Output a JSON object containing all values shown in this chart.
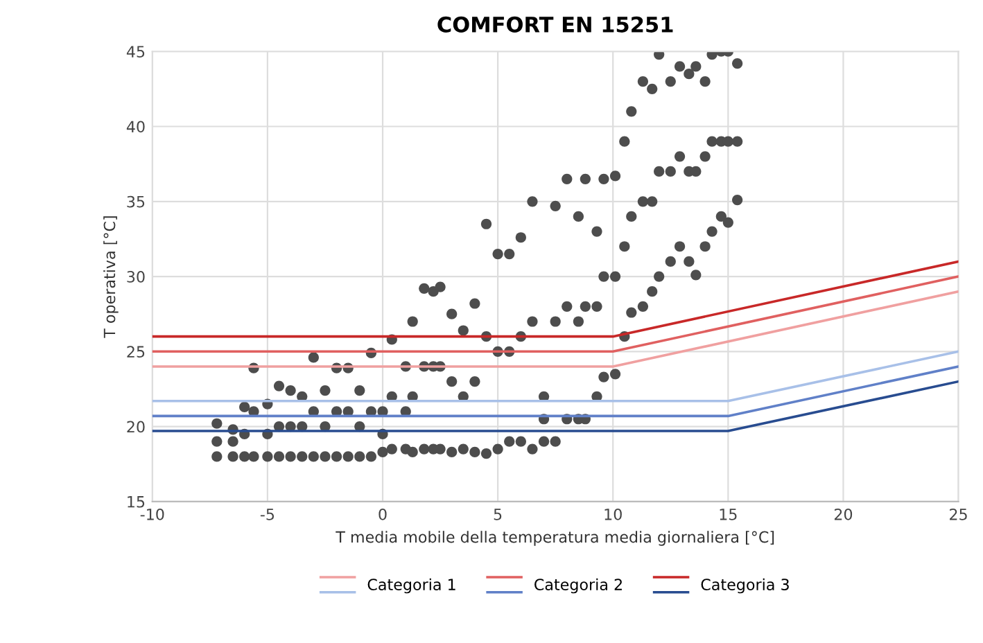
{
  "chart_data": {
    "type": "scatter",
    "title": "COMFORT EN 15251",
    "xlabel": "T media mobile della temperatura media giornaliera [°C]",
    "ylabel": "T operativa [°C]",
    "xlim": [
      -10,
      25
    ],
    "xticks": [
      -10,
      -5,
      0,
      5,
      10,
      15,
      20,
      25
    ],
    "ylim": [
      15,
      45
    ],
    "yticks": [
      15,
      20,
      25,
      30,
      35,
      40,
      45
    ],
    "grid": true,
    "legend": "bottom",
    "series": [
      {
        "marker": "circle",
        "color": "#4d4d4d",
        "x": [
          -7.2,
          -7.2,
          -7.2,
          -6.5,
          -6.5,
          -6.5,
          -6,
          -6,
          -6,
          -5.6,
          -5.6,
          -5.6,
          -5,
          -5,
          -5,
          -4.5,
          -4.5,
          -4.5,
          -4,
          -4,
          -4,
          -3.5,
          -3.5,
          -3.5,
          -3,
          -3,
          -3,
          -2.5,
          -2.5,
          -2.5,
          -2,
          -2,
          -2,
          -1.5,
          -1.5,
          -1.5,
          -1,
          -1,
          -1,
          -0.5,
          -0.5,
          -0.5,
          0,
          0,
          0,
          0.4,
          0.4,
          0.4,
          1,
          1,
          1,
          1.3,
          1.3,
          1.3,
          1.8,
          1.8,
          1.8,
          2.2,
          2.2,
          2.2,
          2.5,
          2.5,
          2.5,
          3,
          3,
          3,
          3.5,
          3.5,
          3.5,
          4,
          4,
          4,
          4.5,
          4.5,
          4.5,
          5,
          5,
          5,
          5.5,
          5.5,
          5.5,
          6,
          6,
          6,
          6.5,
          6.5,
          6.5,
          7,
          7,
          7,
          7.5,
          7.5,
          7.5,
          8,
          8,
          8,
          8.5,
          8.5,
          8.5,
          8.8,
          8.8,
          8.8,
          9.3,
          9.3,
          9.3,
          9.6,
          9.6,
          9.6,
          10.1,
          10.1,
          10.1,
          10.5,
          10.5,
          10.5,
          10.8,
          10.8,
          10.8,
          11.3,
          11.3,
          11.3,
          11.7,
          11.7,
          11.7,
          12,
          12,
          12,
          12.5,
          12.5,
          12.5,
          12.9,
          12.9,
          12.9,
          13.3,
          13.3,
          13.3,
          13.6,
          13.6,
          13.6,
          14,
          14,
          14,
          14.3,
          14.3,
          14.3,
          14.7,
          14.7,
          14.7,
          15,
          15,
          15,
          15.4,
          15.4,
          15.4
        ],
        "values": [
          18,
          19,
          20.2,
          18,
          19,
          19.8,
          18,
          19.5,
          21.3,
          18,
          21,
          23.9,
          18,
          19.5,
          21.5,
          18,
          20,
          22.7,
          18,
          20,
          22.4,
          18,
          20,
          22,
          18,
          21,
          24.6,
          18,
          20,
          22.4,
          18,
          21,
          23.9,
          18,
          21,
          23.9,
          18,
          20,
          22.4,
          18,
          21,
          24.9,
          18.3,
          19.5,
          21,
          18.5,
          22,
          25.8,
          18.5,
          21,
          24,
          18.3,
          22,
          27,
          18.5,
          24,
          29.2,
          18.5,
          24,
          29,
          18.5,
          24,
          29.3,
          18.3,
          23,
          27.5,
          18.5,
          22,
          26.4,
          18.3,
          23,
          28.2,
          18.2,
          26,
          33.5,
          18.5,
          25,
          31.5,
          19,
          25,
          31.5,
          19,
          26,
          32.6,
          18.5,
          27,
          35,
          19,
          20.5,
          22,
          19,
          27,
          34.7,
          20.5,
          28,
          36.5,
          20.5,
          27,
          34,
          20.5,
          28,
          36.5,
          22,
          28,
          33,
          23.3,
          30,
          36.5,
          23.5,
          30,
          36.7,
          26,
          32,
          39,
          27.6,
          34,
          41,
          28,
          35,
          43,
          29,
          35,
          42.5,
          30,
          37,
          44.8,
          31,
          37,
          43,
          32,
          38,
          44,
          31,
          37,
          43.5,
          30.1,
          37,
          44,
          32,
          38,
          43,
          33,
          39,
          44.8,
          34,
          39,
          45,
          33.6,
          39,
          45,
          35.1,
          39,
          44.2
        ]
      },
      {
        "type": "line",
        "name": "Categoria 1",
        "color": "#f0a0a0",
        "x": [
          -10,
          10,
          25
        ],
        "values": [
          24,
          24,
          29
        ]
      },
      {
        "type": "line",
        "color": "#a8c0e8",
        "x": [
          -10,
          15,
          25
        ],
        "values": [
          21.7,
          21.7,
          25
        ]
      },
      {
        "type": "line",
        "name": "Categoria 2",
        "color": "#e06060",
        "x": [
          -10,
          10,
          25
        ],
        "values": [
          25,
          25,
          30
        ]
      },
      {
        "type": "line",
        "color": "#6080c8",
        "x": [
          -10,
          15,
          25
        ],
        "values": [
          20.7,
          20.7,
          24
        ]
      },
      {
        "type": "line",
        "name": "Categoria 3",
        "color": "#c82828",
        "x": [
          -10,
          10,
          25
        ],
        "values": [
          26,
          26,
          31
        ]
      },
      {
        "type": "line",
        "color": "#284c90",
        "x": [
          -10,
          15,
          25
        ],
        "values": [
          19.7,
          19.7,
          23
        ]
      }
    ]
  }
}
